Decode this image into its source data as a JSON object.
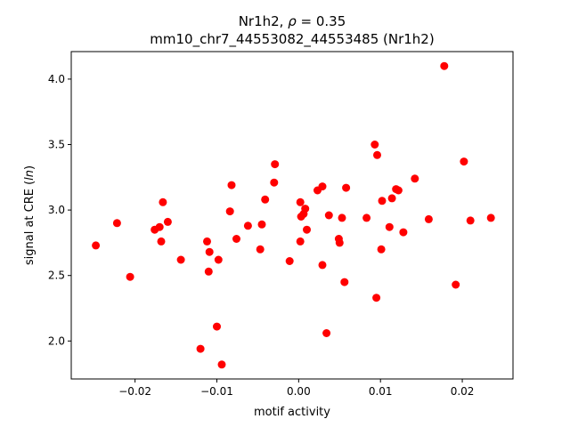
{
  "chart_data": {
    "type": "scatter",
    "title_line1_prefix": "Nr1h2, ",
    "title_rho_symbol": "ρ",
    "title_rho_value": " = 0.35",
    "title_line2": "mm10_chr7_44553082_44553485 (Nr1h2)",
    "xlabel": "motif activity",
    "ylabel_prefix": "signal at CRE (",
    "ylabel_italic": "ln",
    "ylabel_suffix": ")",
    "xlim": [
      -0.0278,
      0.0262
    ],
    "ylim": [
      1.71,
      4.21
    ],
    "xticks": [
      -0.02,
      -0.01,
      0.0,
      0.01,
      0.02
    ],
    "xtick_labels": [
      "−0.02",
      "−0.01",
      "0.00",
      "0.01",
      "0.02"
    ],
    "yticks": [
      2.0,
      2.5,
      3.0,
      3.5,
      4.0
    ],
    "ytick_labels": [
      "2.0",
      "2.5",
      "3.0",
      "3.5",
      "4.0"
    ],
    "marker_color": "#ff0000",
    "points": [
      {
        "x": -0.0248,
        "y": 2.73
      },
      {
        "x": -0.0222,
        "y": 2.9
      },
      {
        "x": -0.0206,
        "y": 2.49
      },
      {
        "x": -0.0176,
        "y": 2.85
      },
      {
        "x": -0.017,
        "y": 2.87
      },
      {
        "x": -0.0168,
        "y": 2.76
      },
      {
        "x": -0.0166,
        "y": 3.06
      },
      {
        "x": -0.016,
        "y": 2.91
      },
      {
        "x": -0.0144,
        "y": 2.62
      },
      {
        "x": -0.012,
        "y": 1.94
      },
      {
        "x": -0.0112,
        "y": 2.76
      },
      {
        "x": -0.011,
        "y": 2.53
      },
      {
        "x": -0.0109,
        "y": 2.68
      },
      {
        "x": -0.01,
        "y": 2.11
      },
      {
        "x": -0.0098,
        "y": 2.62
      },
      {
        "x": -0.0094,
        "y": 1.82
      },
      {
        "x": -0.0084,
        "y": 2.99
      },
      {
        "x": -0.0082,
        "y": 3.19
      },
      {
        "x": -0.0076,
        "y": 2.78
      },
      {
        "x": -0.0062,
        "y": 2.88
      },
      {
        "x": -0.0047,
        "y": 2.7
      },
      {
        "x": -0.0045,
        "y": 2.89
      },
      {
        "x": -0.0041,
        "y": 3.08
      },
      {
        "x": -0.003,
        "y": 3.21
      },
      {
        "x": -0.0029,
        "y": 3.35
      },
      {
        "x": -0.0011,
        "y": 2.61
      },
      {
        "x": 0.0002,
        "y": 2.76
      },
      {
        "x": 0.0002,
        "y": 3.06
      },
      {
        "x": 0.0003,
        "y": 2.95
      },
      {
        "x": 0.0006,
        "y": 2.97
      },
      {
        "x": 0.0008,
        "y": 3.01
      },
      {
        "x": 0.001,
        "y": 2.85
      },
      {
        "x": 0.0023,
        "y": 3.15
      },
      {
        "x": 0.0029,
        "y": 2.58
      },
      {
        "x": 0.0029,
        "y": 3.18
      },
      {
        "x": 0.0034,
        "y": 2.06
      },
      {
        "x": 0.0037,
        "y": 2.96
      },
      {
        "x": 0.0049,
        "y": 2.78
      },
      {
        "x": 0.005,
        "y": 2.75
      },
      {
        "x": 0.0053,
        "y": 2.94
      },
      {
        "x": 0.0056,
        "y": 2.45
      },
      {
        "x": 0.0058,
        "y": 3.17
      },
      {
        "x": 0.0083,
        "y": 2.94
      },
      {
        "x": 0.0093,
        "y": 3.5
      },
      {
        "x": 0.0095,
        "y": 2.33
      },
      {
        "x": 0.0096,
        "y": 3.42
      },
      {
        "x": 0.0101,
        "y": 2.7
      },
      {
        "x": 0.0102,
        "y": 3.07
      },
      {
        "x": 0.0111,
        "y": 2.87
      },
      {
        "x": 0.0114,
        "y": 3.09
      },
      {
        "x": 0.0119,
        "y": 3.16
      },
      {
        "x": 0.0122,
        "y": 3.15
      },
      {
        "x": 0.0128,
        "y": 2.83
      },
      {
        "x": 0.0142,
        "y": 3.24
      },
      {
        "x": 0.0159,
        "y": 2.93
      },
      {
        "x": 0.0178,
        "y": 4.1
      },
      {
        "x": 0.0192,
        "y": 2.43
      },
      {
        "x": 0.0202,
        "y": 3.37
      },
      {
        "x": 0.021,
        "y": 2.92
      },
      {
        "x": 0.0235,
        "y": 2.94
      }
    ]
  }
}
